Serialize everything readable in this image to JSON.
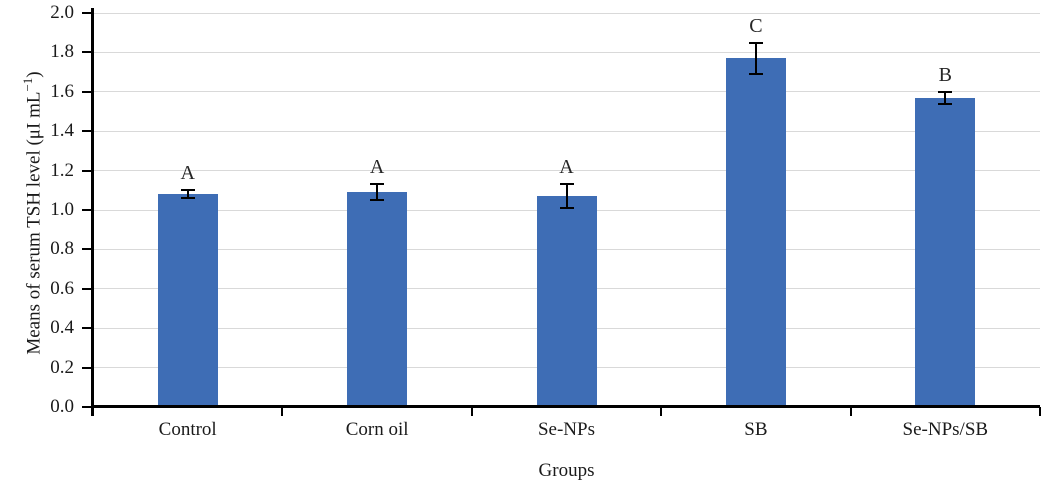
{
  "chart_data": {
    "type": "bar",
    "title": "",
    "categories": [
      "Control",
      "Corn oil",
      "Se-NPs",
      "SB",
      "Se-NPs/SB"
    ],
    "values": [
      1.08,
      1.09,
      1.07,
      1.77,
      1.57
    ],
    "errors": [
      0.02,
      0.04,
      0.06,
      0.08,
      0.03
    ],
    "letters": [
      "A",
      "A",
      "A",
      "C",
      "B"
    ],
    "xlabel": "Groups",
    "ylabel": "Means of serum TSH level (μI mL⁻¹)",
    "ylabel_main": "Means of serum TSH level (μI mL",
    "ylabel_sup": "−1",
    "ylabel_end": ")",
    "ylim": [
      0,
      2.0
    ],
    "ytick_step": 0.2,
    "yticks": [
      "0.0",
      "0.2",
      "0.4",
      "0.6",
      "0.8",
      "1.0",
      "1.2",
      "1.4",
      "1.6",
      "1.8",
      "2.0"
    ],
    "grid": true,
    "legend": "none",
    "bar_color": "#3e6db5",
    "gridline_color": "#d9d9d9",
    "axis_color": "#000000",
    "text_color": "#1a1a1a"
  }
}
